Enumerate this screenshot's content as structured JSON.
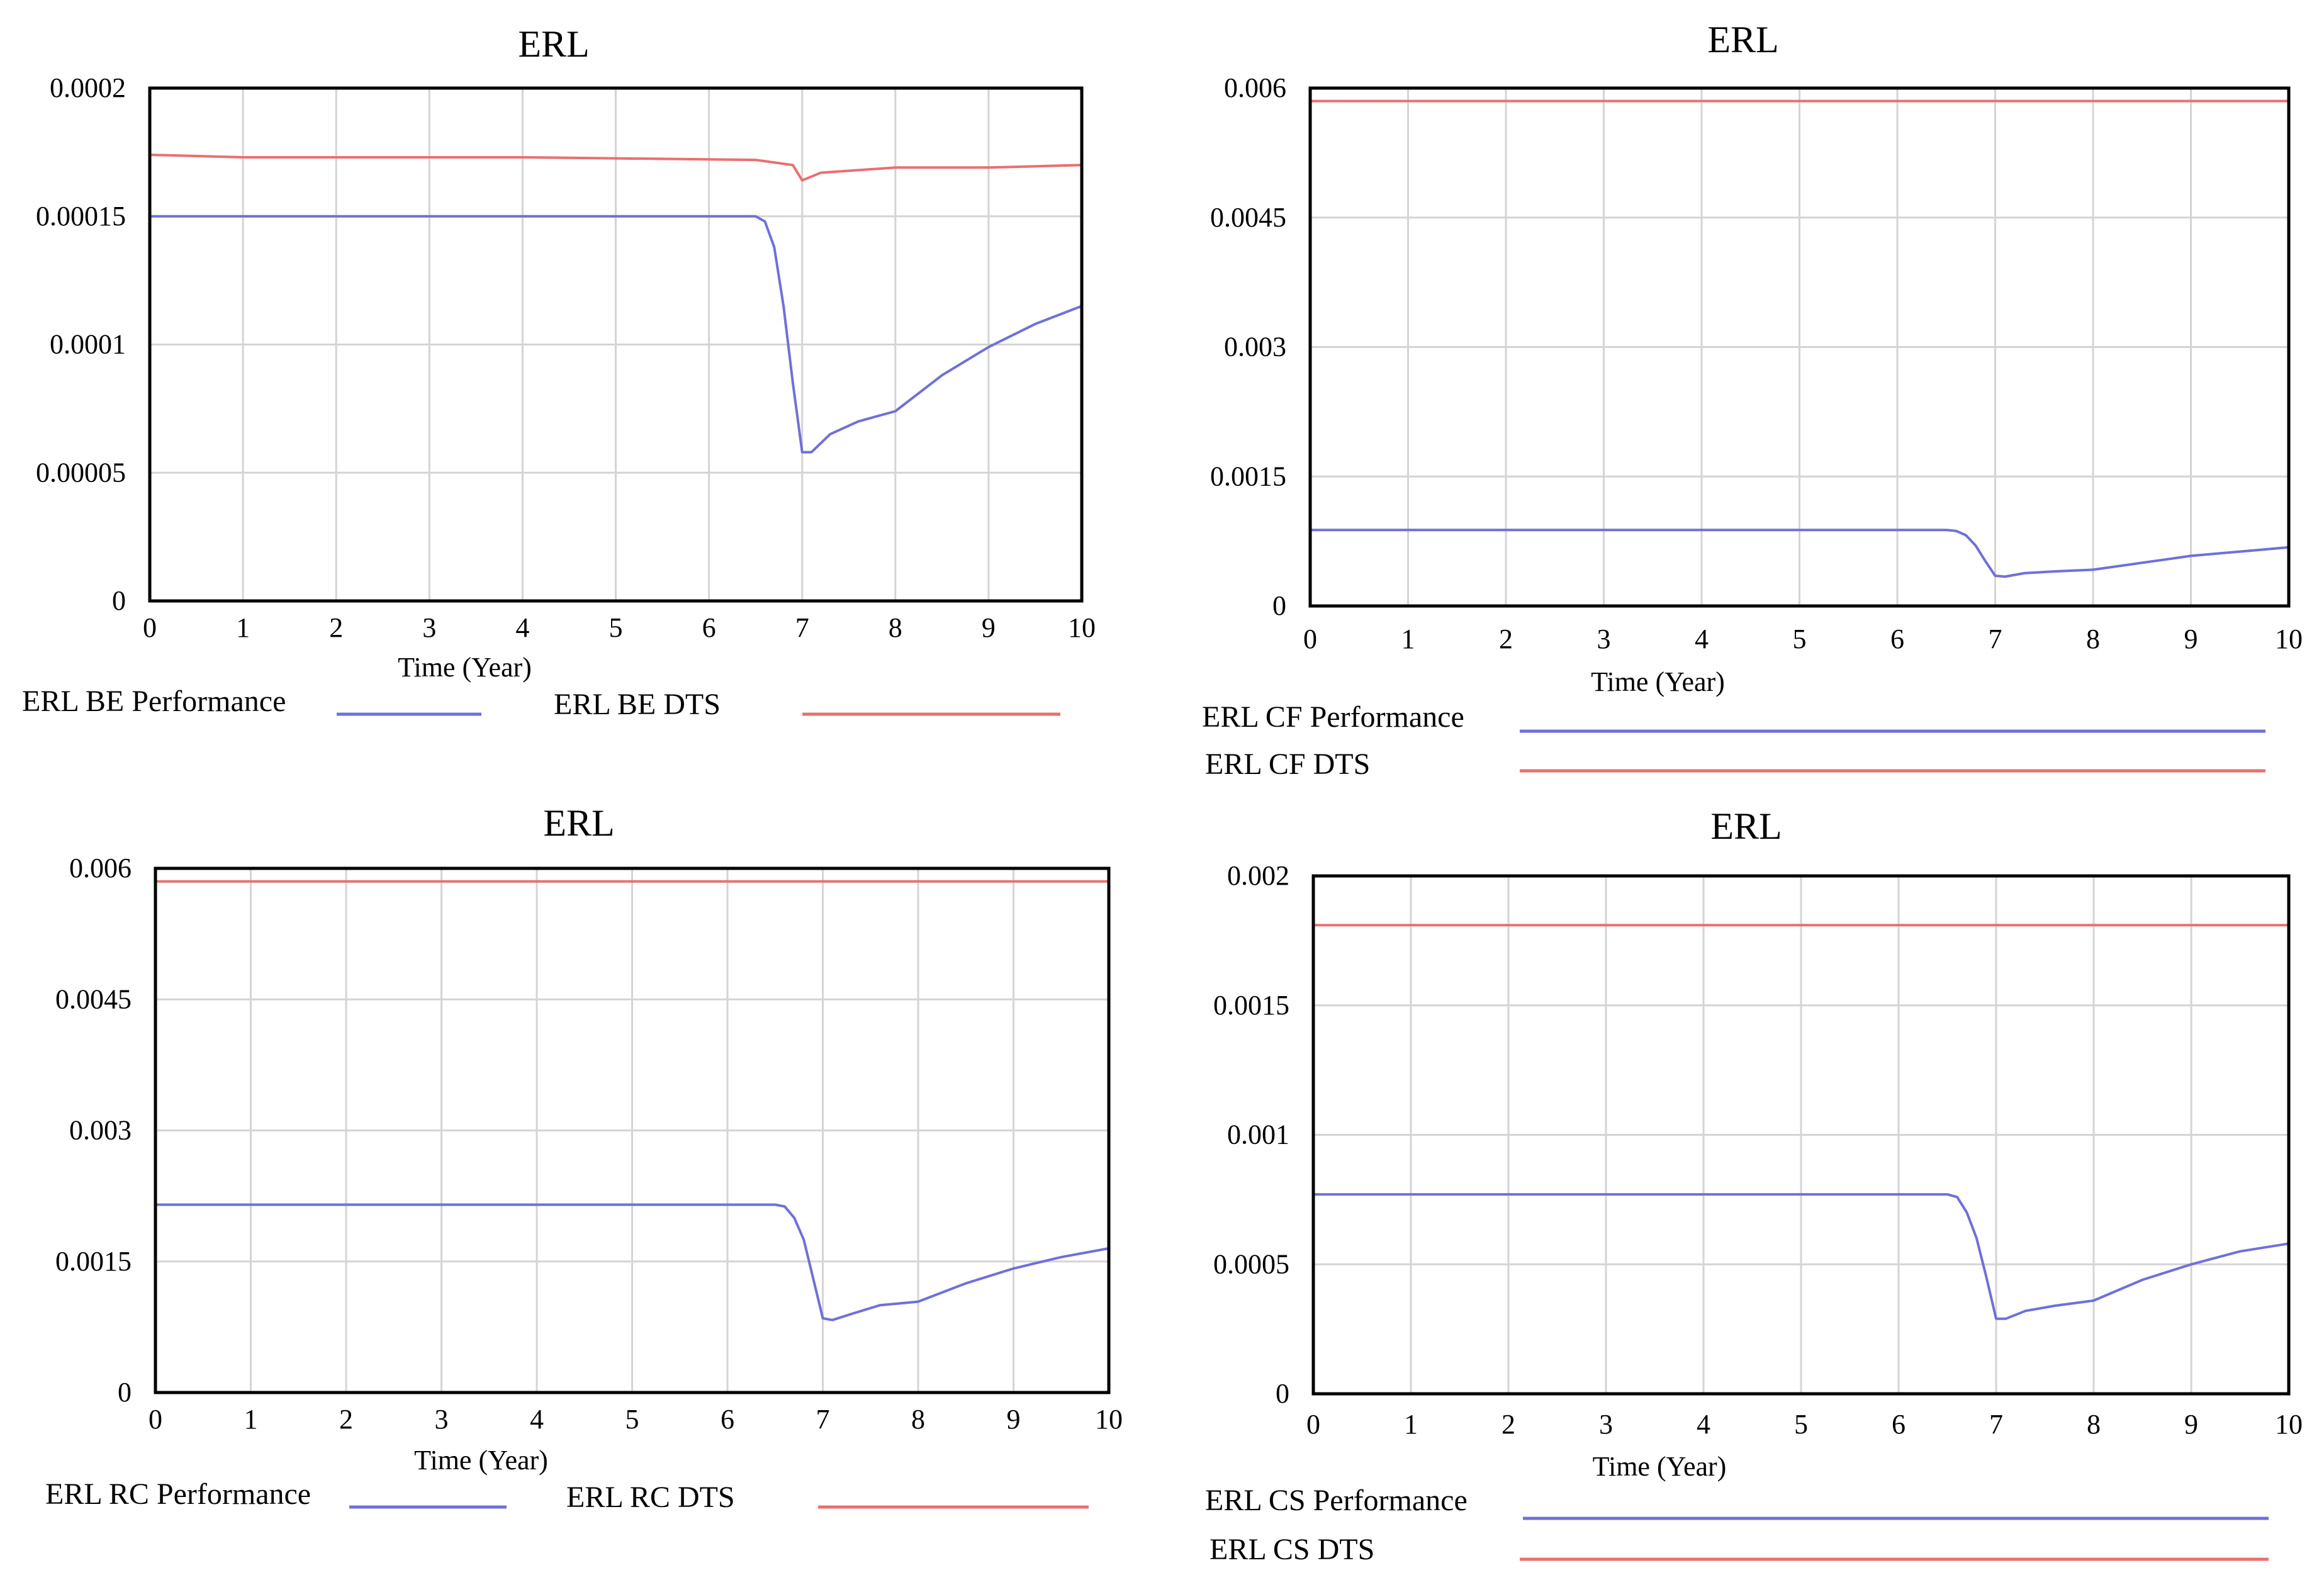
{
  "colors": {
    "performance": "#7070d8",
    "dts": "#e87070",
    "grid": "#d4d4d4",
    "frame": "#000000"
  },
  "chart_data": [
    {
      "type": "line",
      "title": "ERL",
      "xlabel": "Time (Year)",
      "ylabel": "",
      "xlim": [
        0,
        10
      ],
      "ylim": [
        0,
        0.0002
      ],
      "x_ticks": [
        "0",
        "1",
        "2",
        "3",
        "4",
        "5",
        "6",
        "7",
        "8",
        "9",
        "10"
      ],
      "y_ticks": [
        {
          "value": 0,
          "label": "0"
        },
        {
          "value": 5e-05,
          "label": "0.00005"
        },
        {
          "value": 0.0001,
          "label": "0.0001"
        },
        {
          "value": 0.00015,
          "label": "0.00015"
        },
        {
          "value": 0.0002,
          "label": "0.0002"
        }
      ],
      "grid": true,
      "legend_layout": "inline",
      "series": [
        {
          "name": "ERL BE Performance",
          "color_key": "performance",
          "x": [
            0,
            6.5,
            6.6,
            6.7,
            6.8,
            6.9,
            7.0,
            7.1,
            7.3,
            7.6,
            8.0,
            8.5,
            9.0,
            9.5,
            10
          ],
          "y": [
            0.00015,
            0.00015,
            0.000148,
            0.000138,
            0.000115,
            8.5e-05,
            5.8e-05,
            5.8e-05,
            6.5e-05,
            7e-05,
            7.4e-05,
            8.8e-05,
            9.9e-05,
            0.000108,
            0.000115
          ]
        },
        {
          "name": "ERL BE DTS",
          "color_key": "dts",
          "x": [
            0,
            1,
            4,
            6.5,
            6.9,
            7.0,
            7.2,
            7.6,
            8,
            9,
            10
          ],
          "y": [
            0.000174,
            0.000173,
            0.000173,
            0.000172,
            0.00017,
            0.000164,
            0.000167,
            0.000168,
            0.000169,
            0.000169,
            0.00017
          ]
        }
      ]
    },
    {
      "type": "line",
      "title": "ERL",
      "xlabel": "Time (Year)",
      "ylabel": "",
      "xlim": [
        0,
        10
      ],
      "ylim": [
        0,
        0.006
      ],
      "x_ticks": [
        "0",
        "1",
        "2",
        "3",
        "4",
        "5",
        "6",
        "7",
        "8",
        "9",
        "10"
      ],
      "y_ticks": [
        {
          "value": 0,
          "label": "0"
        },
        {
          "value": 0.0015,
          "label": "0.0015"
        },
        {
          "value": 0.003,
          "label": "0.003"
        },
        {
          "value": 0.0045,
          "label": "0.0045"
        },
        {
          "value": 0.006,
          "label": "0.006"
        }
      ],
      "grid": true,
      "legend_layout": "stacked",
      "series": [
        {
          "name": "ERL CF Performance",
          "color_key": "performance",
          "x": [
            0,
            6.5,
            6.6,
            6.7,
            6.8,
            6.9,
            7.0,
            7.1,
            7.3,
            7.6,
            8.0,
            8.5,
            9.0,
            9.5,
            10
          ],
          "y": [
            0.00088,
            0.00088,
            0.00087,
            0.00082,
            0.0007,
            0.00052,
            0.00035,
            0.00034,
            0.00038,
            0.0004,
            0.00042,
            0.0005,
            0.00058,
            0.00063,
            0.00068
          ]
        },
        {
          "name": "ERL CF DTS",
          "color_key": "dts",
          "x": [
            0,
            10
          ],
          "y": [
            0.00585,
            0.00585
          ]
        }
      ]
    },
    {
      "type": "line",
      "title": "ERL",
      "xlabel": "Time (Year)",
      "ylabel": "",
      "xlim": [
        0,
        10
      ],
      "ylim": [
        0,
        0.006
      ],
      "x_ticks": [
        "0",
        "1",
        "2",
        "3",
        "4",
        "5",
        "6",
        "7",
        "8",
        "9",
        "10"
      ],
      "y_ticks": [
        {
          "value": 0,
          "label": "0"
        },
        {
          "value": 0.0015,
          "label": "0.0015"
        },
        {
          "value": 0.003,
          "label": "0.003"
        },
        {
          "value": 0.0045,
          "label": "0.0045"
        },
        {
          "value": 0.006,
          "label": "0.006"
        }
      ],
      "grid": true,
      "legend_layout": "inline",
      "series": [
        {
          "name": "ERL RC Performance",
          "color_key": "performance",
          "x": [
            0,
            6.5,
            6.6,
            6.7,
            6.8,
            6.9,
            7.0,
            7.1,
            7.3,
            7.6,
            8.0,
            8.5,
            9.0,
            9.5,
            10
          ],
          "y": [
            0.00215,
            0.00215,
            0.00213,
            0.002,
            0.00175,
            0.0013,
            0.00085,
            0.00083,
            0.0009,
            0.001,
            0.00104,
            0.00125,
            0.00142,
            0.00155,
            0.00165
          ]
        },
        {
          "name": "ERL RC DTS",
          "color_key": "dts",
          "x": [
            0,
            10
          ],
          "y": [
            0.00585,
            0.00585
          ]
        }
      ]
    },
    {
      "type": "line",
      "title": "ERL",
      "xlabel": "Time (Year)",
      "ylabel": "",
      "xlim": [
        0,
        10
      ],
      "ylim": [
        0,
        0.002
      ],
      "x_ticks": [
        "0",
        "1",
        "2",
        "3",
        "4",
        "5",
        "6",
        "7",
        "8",
        "9",
        "10"
      ],
      "y_ticks": [
        {
          "value": 0,
          "label": "0"
        },
        {
          "value": 0.0005,
          "label": "0.0005"
        },
        {
          "value": 0.001,
          "label": "0.001"
        },
        {
          "value": 0.0015,
          "label": "0.0015"
        },
        {
          "value": 0.002,
          "label": "0.002"
        }
      ],
      "grid": true,
      "legend_layout": "stacked",
      "series": [
        {
          "name": "ERL CS Performance",
          "color_key": "performance",
          "x": [
            0,
            6.5,
            6.6,
            6.7,
            6.8,
            6.9,
            7.0,
            7.1,
            7.3,
            7.6,
            8.0,
            8.5,
            9.0,
            9.5,
            10
          ],
          "y": [
            0.00077,
            0.00077,
            0.00076,
            0.0007,
            0.0006,
            0.00045,
            0.00029,
            0.00029,
            0.00032,
            0.00034,
            0.00036,
            0.00044,
            0.0005,
            0.00055,
            0.00058
          ]
        },
        {
          "name": "ERL CS DTS",
          "color_key": "dts",
          "x": [
            0,
            10
          ],
          "y": [
            0.00181,
            0.00181
          ]
        }
      ]
    }
  ]
}
